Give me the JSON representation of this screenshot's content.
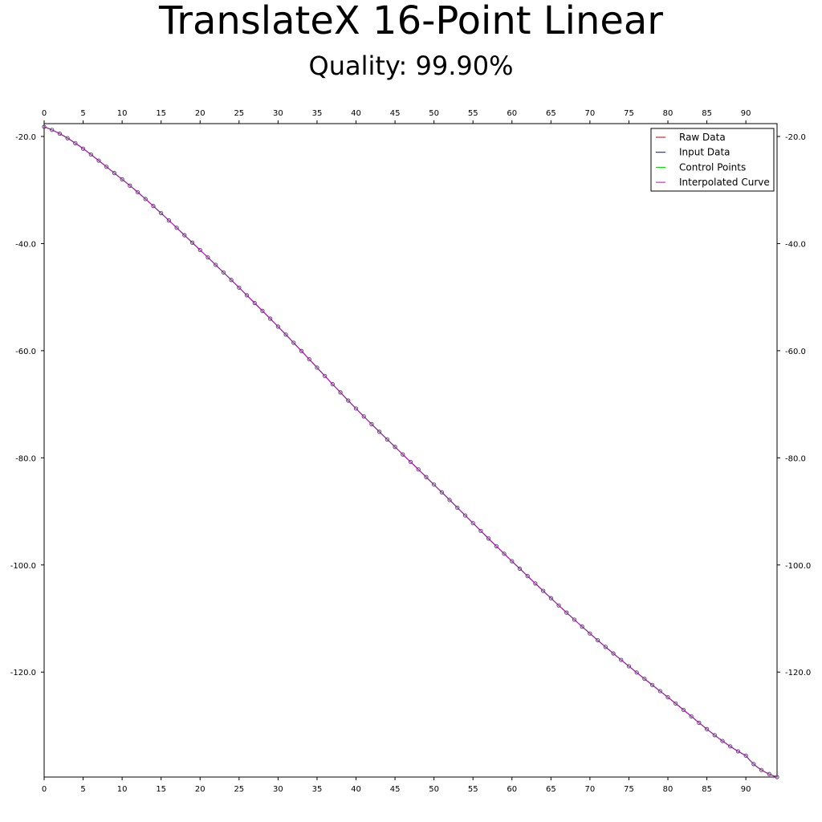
{
  "chart_data": {
    "type": "line",
    "title": "TranslateX 16-Point Linear",
    "subtitle": "Quality: 99.90%",
    "xlabel": "",
    "ylabel": "",
    "xlim": [
      0,
      94
    ],
    "ylim": [
      -139.6,
      -17.6
    ],
    "x_ticks": [
      0,
      5,
      10,
      15,
      20,
      25,
      30,
      35,
      40,
      45,
      50,
      55,
      60,
      65,
      70,
      75,
      80,
      85,
      90
    ],
    "y_ticks": [
      -20.0,
      -40.0,
      -60.0,
      -80.0,
      -100.0,
      -120.0
    ],
    "y_tick_labels": [
      "-20.0",
      "-40.0",
      "-60.0",
      "-80.0",
      "-100.0",
      "-120.0"
    ],
    "x_axes": [
      "top",
      "bottom"
    ],
    "y_axes": [
      "left",
      "right"
    ],
    "grid": false,
    "legend_position": "top-right",
    "series": [
      {
        "name": "Raw Data",
        "color": "#cc0000",
        "marker": "none",
        "x": [
          0,
          10,
          20,
          30,
          40,
          50,
          60,
          70,
          80,
          90,
          94
        ],
        "y": [
          -18.2,
          -28.0,
          -41.2,
          -55.5,
          -70.8,
          -85.0,
          -99.3,
          -112.8,
          -124.7,
          -135.6,
          -139.6
        ]
      },
      {
        "name": "Input Data",
        "color": "#0000cc",
        "marker": "none",
        "x": [
          0,
          10,
          20,
          30,
          40,
          50,
          60,
          70,
          80,
          90,
          94
        ],
        "y": [
          -18.2,
          -28.0,
          -41.2,
          -55.5,
          -70.8,
          -85.0,
          -99.3,
          -112.8,
          -124.7,
          -135.6,
          -139.6
        ]
      },
      {
        "name": "Control Points",
        "color": "#00cc00",
        "marker": "none",
        "x": [
          0,
          10,
          20,
          30,
          40,
          50,
          60,
          70,
          80,
          90,
          94
        ],
        "y": [
          -18.2,
          -28.0,
          -41.2,
          -55.5,
          -70.8,
          -85.0,
          -99.3,
          -112.8,
          -124.7,
          -135.6,
          -139.6
        ]
      },
      {
        "name": "Interpolated Curve",
        "color": "#cc00cc",
        "marker": "circle",
        "x": [
          0,
          10,
          20,
          30,
          40,
          50,
          60,
          70,
          80,
          90,
          94
        ],
        "y": [
          -18.2,
          -28.0,
          -41.2,
          -55.5,
          -70.8,
          -85.0,
          -99.3,
          -112.8,
          -124.7,
          -135.6,
          -139.6
        ]
      }
    ]
  }
}
